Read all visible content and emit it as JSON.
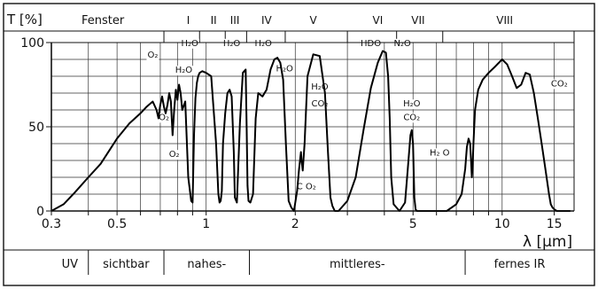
{
  "chart_data": {
    "type": "line",
    "ylabel": "T [%]",
    "xlabel": "λ [μm]",
    "x_scale": "log",
    "xlim": [
      0.3,
      17.5
    ],
    "ylim": [
      0,
      100
    ],
    "grid": true,
    "x_ticks": [
      {
        "value": 0.3,
        "label": "0.3"
      },
      {
        "value": 0.5,
        "label": "0.5"
      },
      {
        "value": 1,
        "label": "1"
      },
      {
        "value": 2,
        "label": "2"
      },
      {
        "value": 5,
        "label": "5"
      },
      {
        "value": 10,
        "label": "10"
      },
      {
        "value": 15,
        "label": "15"
      }
    ],
    "y_ticks": [
      {
        "value": 0,
        "label": "0"
      },
      {
        "value": 50,
        "label": "50"
      },
      {
        "value": 100,
        "label": "100"
      }
    ],
    "window_header": "Fenster",
    "windows": [
      {
        "label": "I",
        "x": 0.87
      },
      {
        "label": "II",
        "x": 1.06
      },
      {
        "label": "III",
        "x": 1.25
      },
      {
        "label": "IV",
        "x": 1.6
      },
      {
        "label": "V",
        "x": 2.3
      },
      {
        "label": "VI",
        "x": 3.8
      },
      {
        "label": "VII",
        "x": 5.2
      },
      {
        "label": "VIII",
        "x": 10.2
      }
    ],
    "window_dividers": [
      0.72,
      0.95,
      1.16,
      1.37,
      1.85,
      3.0,
      4.4,
      6.3,
      17.5
    ],
    "regions": [
      {
        "label": "UV",
        "from": 0.3,
        "to": 0.4
      },
      {
        "label": "sichtbar",
        "from": 0.4,
        "to": 0.72
      },
      {
        "label": "nahes-",
        "from": 0.72,
        "to": 1.4
      },
      {
        "label": "mittleres-",
        "from": 1.4,
        "to": 7.5
      },
      {
        "label": "fernes IR",
        "from": 7.5,
        "to": 17.5
      }
    ],
    "annotations": [
      {
        "text": "O₂",
        "x": 0.66,
        "y": 91
      },
      {
        "text": "H₂O",
        "x": 0.88,
        "y": 98
      },
      {
        "text": "H₂O",
        "x": 1.22,
        "y": 98
      },
      {
        "text": "H₂O",
        "x": 1.56,
        "y": 98
      },
      {
        "text": "HDO",
        "x": 3.6,
        "y": 98
      },
      {
        "text": "N₂O",
        "x": 4.6,
        "y": 98
      },
      {
        "text": "H₂O",
        "x": 0.84,
        "y": 82
      },
      {
        "text": "H₂O",
        "x": 1.84,
        "y": 83
      },
      {
        "text": "O₂",
        "x": 0.72,
        "y": 54
      },
      {
        "text": "O₂",
        "x": 0.78,
        "y": 32
      },
      {
        "text": "H₂O",
        "x": 2.42,
        "y": 72
      },
      {
        "text": "CO₂",
        "x": 2.42,
        "y": 62
      },
      {
        "text": "C O₂",
        "x": 2.18,
        "y": 13
      },
      {
        "text": "H₂O",
        "x": 4.95,
        "y": 62
      },
      {
        "text": "CO₂",
        "x": 4.95,
        "y": 54
      },
      {
        "text": "H₂ O",
        "x": 6.15,
        "y": 33
      },
      {
        "text": "CO₂",
        "x": 15.6,
        "y": 74
      }
    ],
    "series": [
      {
        "x": [
          0.3,
          0.33,
          0.36,
          0.4,
          0.44,
          0.5,
          0.55,
          0.6,
          0.63,
          0.66,
          0.68,
          0.69,
          0.7,
          0.71,
          0.72,
          0.73,
          0.74,
          0.75,
          0.76,
          0.77,
          0.78,
          0.79,
          0.8,
          0.81,
          0.82,
          0.83,
          0.85,
          0.87,
          0.89,
          0.9,
          0.91,
          0.92,
          0.93,
          0.94,
          0.95,
          0.97,
          1.0,
          1.04,
          1.08,
          1.1,
          1.11,
          1.12,
          1.13,
          1.14,
          1.16,
          1.18,
          1.2,
          1.22,
          1.24,
          1.25,
          1.27,
          1.3,
          1.33,
          1.36,
          1.37,
          1.38,
          1.39,
          1.41,
          1.44,
          1.47,
          1.5,
          1.55,
          1.6,
          1.65,
          1.7,
          1.74,
          1.78,
          1.82,
          1.86,
          1.9,
          1.94,
          1.98,
          2.0,
          2.03,
          2.06,
          2.09,
          2.1,
          2.12,
          2.15,
          2.2,
          2.3,
          2.42,
          2.52,
          2.58,
          2.63,
          2.67,
          2.72,
          2.8,
          3.0,
          3.2,
          3.4,
          3.6,
          3.8,
          3.95,
          4.05,
          4.12,
          4.17,
          4.22,
          4.3,
          4.5,
          4.7,
          4.8,
          4.9,
          4.95,
          5.0,
          5.05,
          5.1,
          5.15,
          5.22,
          5.3,
          5.5,
          6.0,
          6.5,
          7.0,
          7.3,
          7.5,
          7.6,
          7.7,
          7.8,
          7.85,
          7.9,
          7.95,
          8.0,
          8.1,
          8.3,
          8.6,
          9.0,
          9.5,
          10.0,
          10.4,
          10.8,
          11.2,
          11.6,
          12.0,
          12.4,
          12.8,
          13.2,
          13.6,
          14.0,
          14.4,
          14.6,
          14.8,
          15.0,
          15.3,
          15.6,
          16.0,
          17.0
        ],
        "y": [
          0,
          4,
          11,
          20,
          28,
          43,
          52,
          58,
          62,
          65,
          60,
          55,
          63,
          68,
          62,
          58,
          63,
          70,
          65,
          45,
          60,
          72,
          66,
          75,
          70,
          60,
          65,
          20,
          6,
          5,
          45,
          67,
          76,
          80,
          82,
          83,
          82,
          80,
          40,
          10,
          5,
          6,
          12,
          40,
          58,
          70,
          72,
          68,
          35,
          8,
          5,
          52,
          82,
          84,
          50,
          15,
          6,
          5,
          10,
          55,
          70,
          68,
          72,
          84,
          90,
          91,
          88,
          78,
          40,
          6,
          2,
          0,
          5,
          12,
          25,
          35,
          30,
          24,
          40,
          80,
          93,
          92,
          70,
          35,
          8,
          3,
          0,
          0,
          6,
          20,
          48,
          73,
          88,
          95,
          94,
          80,
          55,
          20,
          4,
          0,
          5,
          25,
          45,
          48,
          40,
          8,
          1,
          0,
          0,
          0,
          0,
          0,
          0,
          4,
          10,
          25,
          38,
          43,
          40,
          30,
          20,
          27,
          40,
          60,
          72,
          78,
          82,
          86,
          90,
          87,
          80,
          73,
          75,
          82,
          81,
          70,
          55,
          40,
          25,
          10,
          4,
          2,
          1,
          0,
          0,
          0,
          0
        ]
      }
    ]
  }
}
